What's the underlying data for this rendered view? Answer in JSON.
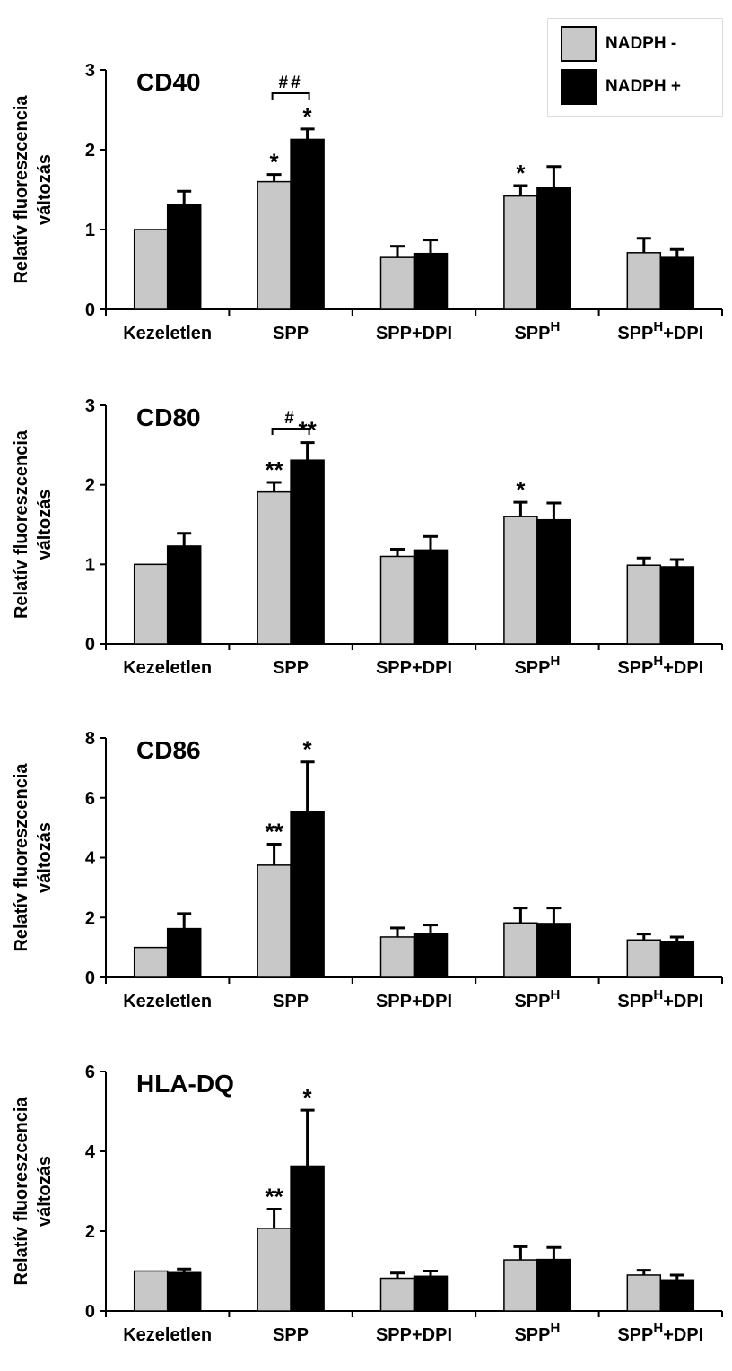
{
  "colors": {
    "nadph_minus": "#c8c8c8",
    "nadph_plus": "#000000",
    "axis": "#000000"
  },
  "legend": {
    "items": [
      {
        "label": "NADPH -"
      },
      {
        "label": "NADPH +"
      }
    ]
  },
  "chart_data": [
    {
      "type": "bar",
      "title": "CD40",
      "ylabel": "Relatív fluoreszcencia változás",
      "ylabel_lines": [
        "Relatív fluoreszcencia",
        "változás"
      ],
      "ylim": [
        0,
        3
      ],
      "yticks": [
        0,
        1,
        2,
        3
      ],
      "categories": [
        "Kezeletlen",
        "SPP",
        "SPP+DPI",
        "SPPH",
        "SPPH+DPI"
      ],
      "series": [
        {
          "name": "NADPH -",
          "values": [
            1.0,
            1.6,
            0.65,
            1.42,
            0.71
          ],
          "errors": [
            0,
            0.09,
            0.14,
            0.13,
            0.18
          ],
          "marks": [
            "",
            "*",
            "",
            "*",
            ""
          ]
        },
        {
          "name": "NADPH +",
          "values": [
            1.31,
            2.13,
            0.7,
            1.52,
            0.65
          ],
          "errors": [
            0.17,
            0.13,
            0.17,
            0.27,
            0.1
          ],
          "marks": [
            "",
            "*",
            "",
            "",
            ""
          ]
        }
      ],
      "bracket": {
        "category": "SPP",
        "label": "##"
      }
    },
    {
      "type": "bar",
      "title": "CD80",
      "ylabel": "Relatív fluoreszcencia változás",
      "ylabel_lines": [
        "Relatív fluoreszcencia",
        "változás"
      ],
      "ylim": [
        0,
        3
      ],
      "yticks": [
        0,
        1,
        2,
        3
      ],
      "categories": [
        "Kezeletlen",
        "SPP",
        "SPP+DPI",
        "SPPH",
        "SPPH+DPI"
      ],
      "series": [
        {
          "name": "NADPH -",
          "values": [
            1.0,
            1.91,
            1.1,
            1.6,
            0.99
          ],
          "errors": [
            0,
            0.12,
            0.09,
            0.18,
            0.09
          ],
          "marks": [
            "",
            "**",
            "",
            "*",
            ""
          ]
        },
        {
          "name": "NADPH +",
          "values": [
            1.23,
            2.31,
            1.18,
            1.56,
            0.97
          ],
          "errors": [
            0.16,
            0.22,
            0.17,
            0.21,
            0.09
          ],
          "marks": [
            "",
            "**",
            "",
            "",
            ""
          ]
        }
      ],
      "bracket": {
        "category": "SPP",
        "label": "#"
      }
    },
    {
      "type": "bar",
      "title": "CD86",
      "ylabel": "Relatív fluoreszcencia változás",
      "ylabel_lines": [
        "Relatív fluoreszcencia",
        "változás"
      ],
      "ylim": [
        0,
        8
      ],
      "yticks": [
        0,
        2,
        4,
        6,
        8
      ],
      "categories": [
        "Kezeletlen",
        "SPP",
        "SPP+DPI",
        "SPPH",
        "SPPH+DPI"
      ],
      "series": [
        {
          "name": "NADPH -",
          "values": [
            1.0,
            3.75,
            1.35,
            1.82,
            1.25
          ],
          "errors": [
            0,
            0.7,
            0.3,
            0.5,
            0.2
          ],
          "marks": [
            "",
            "**",
            "",
            "",
            ""
          ]
        },
        {
          "name": "NADPH +",
          "values": [
            1.63,
            5.55,
            1.45,
            1.8,
            1.2
          ],
          "errors": [
            0.5,
            1.65,
            0.3,
            0.52,
            0.15
          ],
          "marks": [
            "",
            "*",
            "",
            "",
            ""
          ]
        }
      ]
    },
    {
      "type": "bar",
      "title": "HLA-DQ",
      "ylabel": "Relatív fluoreszcencia változás",
      "ylabel_lines": [
        "Relatív fluoreszcencia",
        "változás"
      ],
      "ylim": [
        0,
        6
      ],
      "yticks": [
        0,
        2,
        4,
        6
      ],
      "categories": [
        "Kezeletlen",
        "SPP",
        "SPP+DPI",
        "SPPH",
        "SPPH+DPI"
      ],
      "series": [
        {
          "name": "NADPH -",
          "values": [
            1.0,
            2.07,
            0.82,
            1.28,
            0.9
          ],
          "errors": [
            0,
            0.48,
            0.13,
            0.33,
            0.12
          ],
          "marks": [
            "",
            "**",
            "",
            "",
            ""
          ]
        },
        {
          "name": "NADPH +",
          "values": [
            0.96,
            3.63,
            0.87,
            1.29,
            0.78
          ],
          "errors": [
            0.09,
            1.4,
            0.13,
            0.3,
            0.12
          ],
          "marks": [
            "",
            "*",
            "",
            "",
            ""
          ]
        }
      ]
    }
  ]
}
